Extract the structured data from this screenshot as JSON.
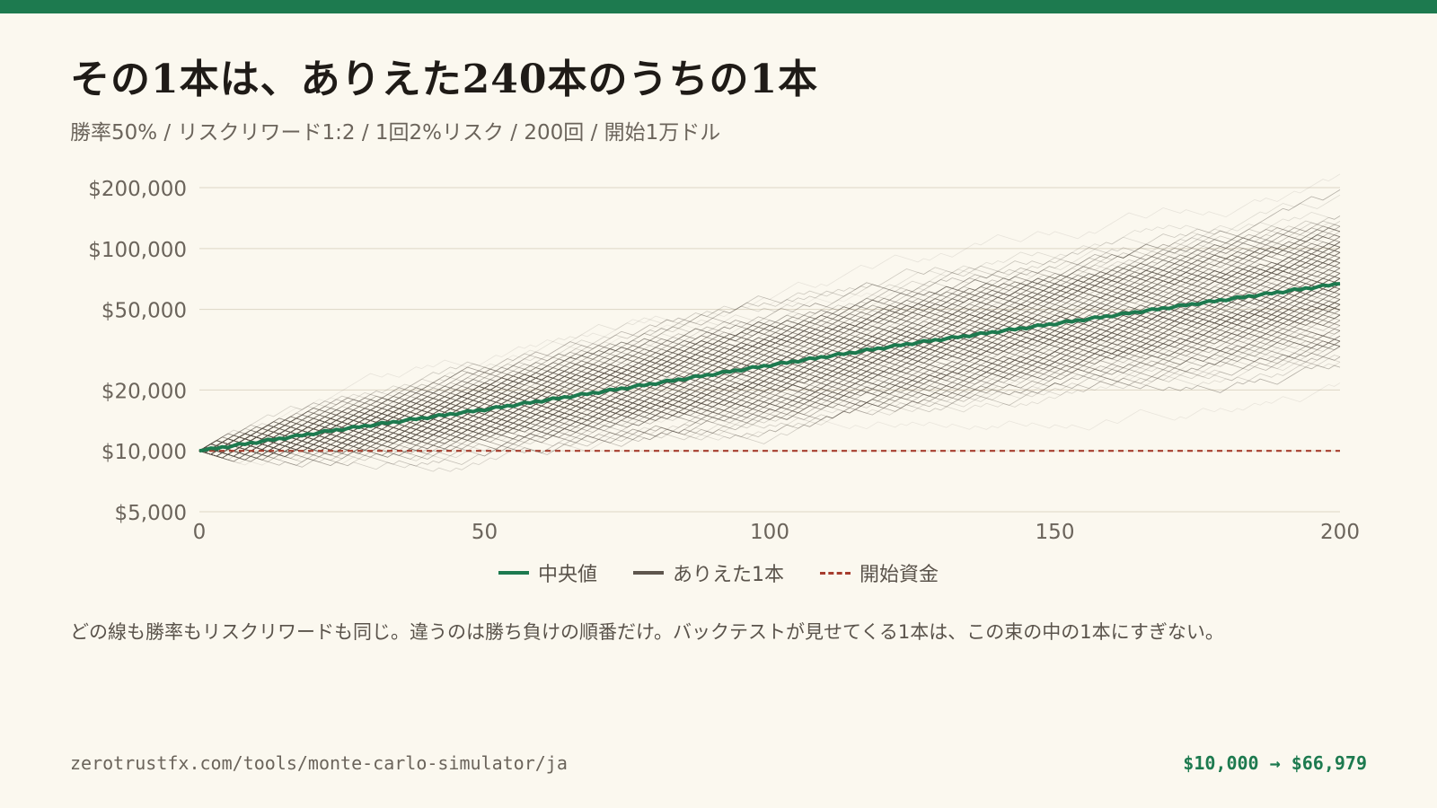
{
  "header": {
    "title": "その1本は、ありえた240本のうちの1本",
    "subtitle": "勝率50% / リスクリワード1:2 / 1回2%リスク / 200回 / 開始1万ドル"
  },
  "legend": {
    "median_label": "中央値",
    "paths_label": "ありえた1本",
    "start_label": "開始資金"
  },
  "caption": "どの線も勝率もリスクリワードも同じ。違うのは勝ち負けの順番だけ。バックテストが見せてくる1本は、この束の中の1本にすぎない。",
  "footer": {
    "url": "zerotrustfx.com/tools/monte-carlo-simulator/ja",
    "result": "$10,000 → $66,979"
  },
  "colors": {
    "accent": "#1d7a4f",
    "paths": "#5e564d",
    "start_line": "#a63d2e",
    "grid": "#ddd6c5",
    "axis_text": "#6b645b"
  },
  "chart_data": {
    "type": "line",
    "scale_y": "log",
    "xlim": [
      0,
      200
    ],
    "x_ticks": [
      0,
      50,
      100,
      150,
      200
    ],
    "x_tick_labels": [
      "0",
      "50",
      "100",
      "150",
      "200"
    ],
    "y_ticks": [
      5000,
      10000,
      20000,
      50000,
      100000,
      200000
    ],
    "y_tick_labels": [
      "$5,000",
      "$10,000",
      "$20,000",
      "$50,000",
      "$100,000",
      "$200,000"
    ],
    "ylim": [
      5000,
      200000
    ],
    "grid": true,
    "legend_position": "bottom-center",
    "start_value": 10000,
    "median_final": 66979,
    "simulation": {
      "paths": 240,
      "trades": 200,
      "win_rate": 0.5,
      "risk_per_trade": 0.02,
      "reward_ratio": 2,
      "start_capital": 10000
    },
    "series": [
      {
        "name": "中央値",
        "values": [
          {
            "x": 0,
            "y": 10000
          },
          {
            "x": 25,
            "y": 12800
          },
          {
            "x": 50,
            "y": 16000
          },
          {
            "x": 75,
            "y": 20500
          },
          {
            "x": 100,
            "y": 26500
          },
          {
            "x": 125,
            "y": 34000
          },
          {
            "x": 150,
            "y": 42500
          },
          {
            "x": 175,
            "y": 53500
          },
          {
            "x": 200,
            "y": 66979
          }
        ]
      },
      {
        "name": "ありえた1本",
        "values": []
      },
      {
        "name": "開始資金",
        "values": [
          {
            "x": 0,
            "y": 10000
          },
          {
            "x": 200,
            "y": 10000
          }
        ]
      }
    ]
  }
}
